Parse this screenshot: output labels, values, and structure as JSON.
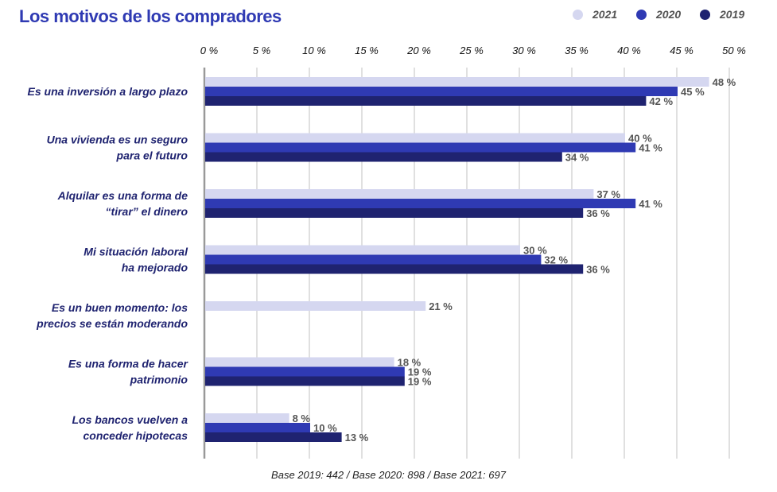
{
  "chart_data": {
    "type": "bar",
    "orientation": "horizontal",
    "title": "Los motivos de los compradores",
    "categories": [
      [
        "Es una inversión a largo plazo"
      ],
      [
        "Una vivienda es un seguro",
        "para el futuro"
      ],
      [
        "Alquilar es una forma de",
        "“tirar” el dinero"
      ],
      [
        "Mi situación laboral",
        "ha mejorado"
      ],
      [
        "Es un buen momento: los",
        "precios se están moderando"
      ],
      [
        "Es una forma de hacer",
        "patrimonio"
      ],
      [
        "Los bancos vuelven a",
        "conceder hipotecas"
      ]
    ],
    "series": [
      {
        "name": "2021",
        "color": "#d5d7f0",
        "values": [
          48,
          40,
          37,
          30,
          21,
          18,
          8
        ]
      },
      {
        "name": "2020",
        "color": "#2f3ab3",
        "values": [
          45,
          41,
          41,
          32,
          null,
          19,
          10
        ]
      },
      {
        "name": "2019",
        "color": "#1f2370",
        "values": [
          42,
          34,
          36,
          36,
          null,
          19,
          13
        ]
      }
    ],
    "xlim": [
      0,
      50
    ],
    "xticks": [
      0,
      5,
      10,
      15,
      20,
      25,
      30,
      35,
      40,
      45,
      50
    ],
    "tick_suffix": " %",
    "grid": true,
    "legend_position": "top-right",
    "footnote": "Base 2019: 442 / Base 2020: 898 / Base 2021: 697"
  }
}
